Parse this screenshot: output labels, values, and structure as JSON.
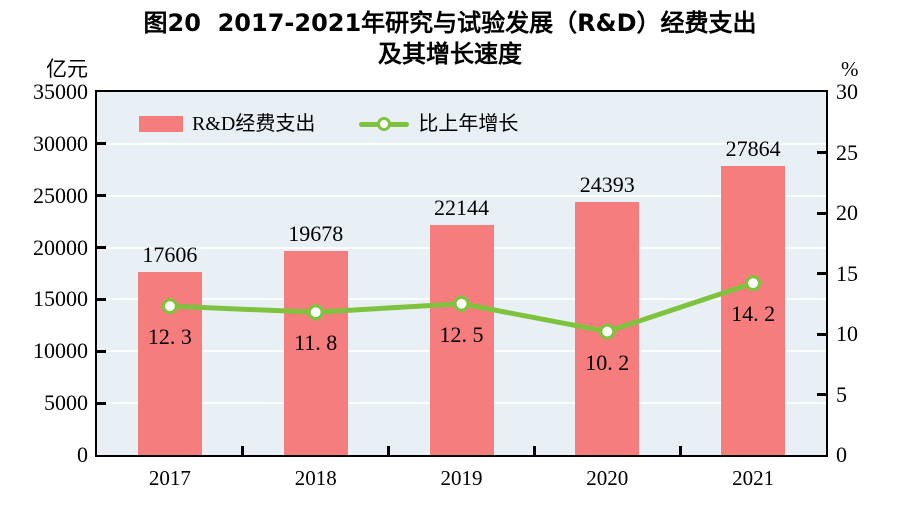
{
  "figure": {
    "title_line1": "图20  2017-2021年研究与试验发展（R&D）经费支出",
    "title_line2": "及其增长速度"
  },
  "axes": {
    "left_unit": "亿元",
    "right_unit": "%",
    "left_ticks": [
      0,
      5000,
      10000,
      15000,
      20000,
      25000,
      30000,
      35000
    ],
    "right_ticks": [
      0,
      5,
      10,
      15,
      20,
      25,
      30
    ],
    "left_max": 35000,
    "right_max": 30,
    "grid_step_left": 5000
  },
  "legend": [
    {
      "label": "R&D经费支出",
      "swatch": "bar"
    },
    {
      "label": "比上年增长",
      "swatch": "line"
    }
  ],
  "colors": {
    "bar": "#F57D7D",
    "line": "#7EC23E",
    "marker_fill": "#FFFFFF",
    "plot_bg": "#E9F0F5",
    "axis": "#000000",
    "text": "#000000"
  },
  "chart_data": [
    {
      "type": "bar",
      "name": "R&D经费支出",
      "categories": [
        "2017",
        "2018",
        "2019",
        "2020",
        "2021"
      ],
      "values": [
        17606,
        19678,
        22144,
        24393,
        27864
      ],
      "value_labels": [
        "17606",
        "19678",
        "22144",
        "24393",
        "27864"
      ],
      "ylabel": "亿元",
      "ylim": [
        0,
        35000
      ],
      "axis": "left",
      "legend_position": "top-left-inside",
      "grid": true
    },
    {
      "type": "line",
      "name": "比上年增长",
      "categories": [
        "2017",
        "2018",
        "2019",
        "2020",
        "2021"
      ],
      "values": [
        12.3,
        11.8,
        12.5,
        10.2,
        14.2
      ],
      "value_labels": [
        "12. 3",
        "11. 8",
        "12. 5",
        "10. 2",
        "14. 2"
      ],
      "ylabel": "%",
      "ylim": [
        0,
        30
      ],
      "axis": "right"
    }
  ]
}
